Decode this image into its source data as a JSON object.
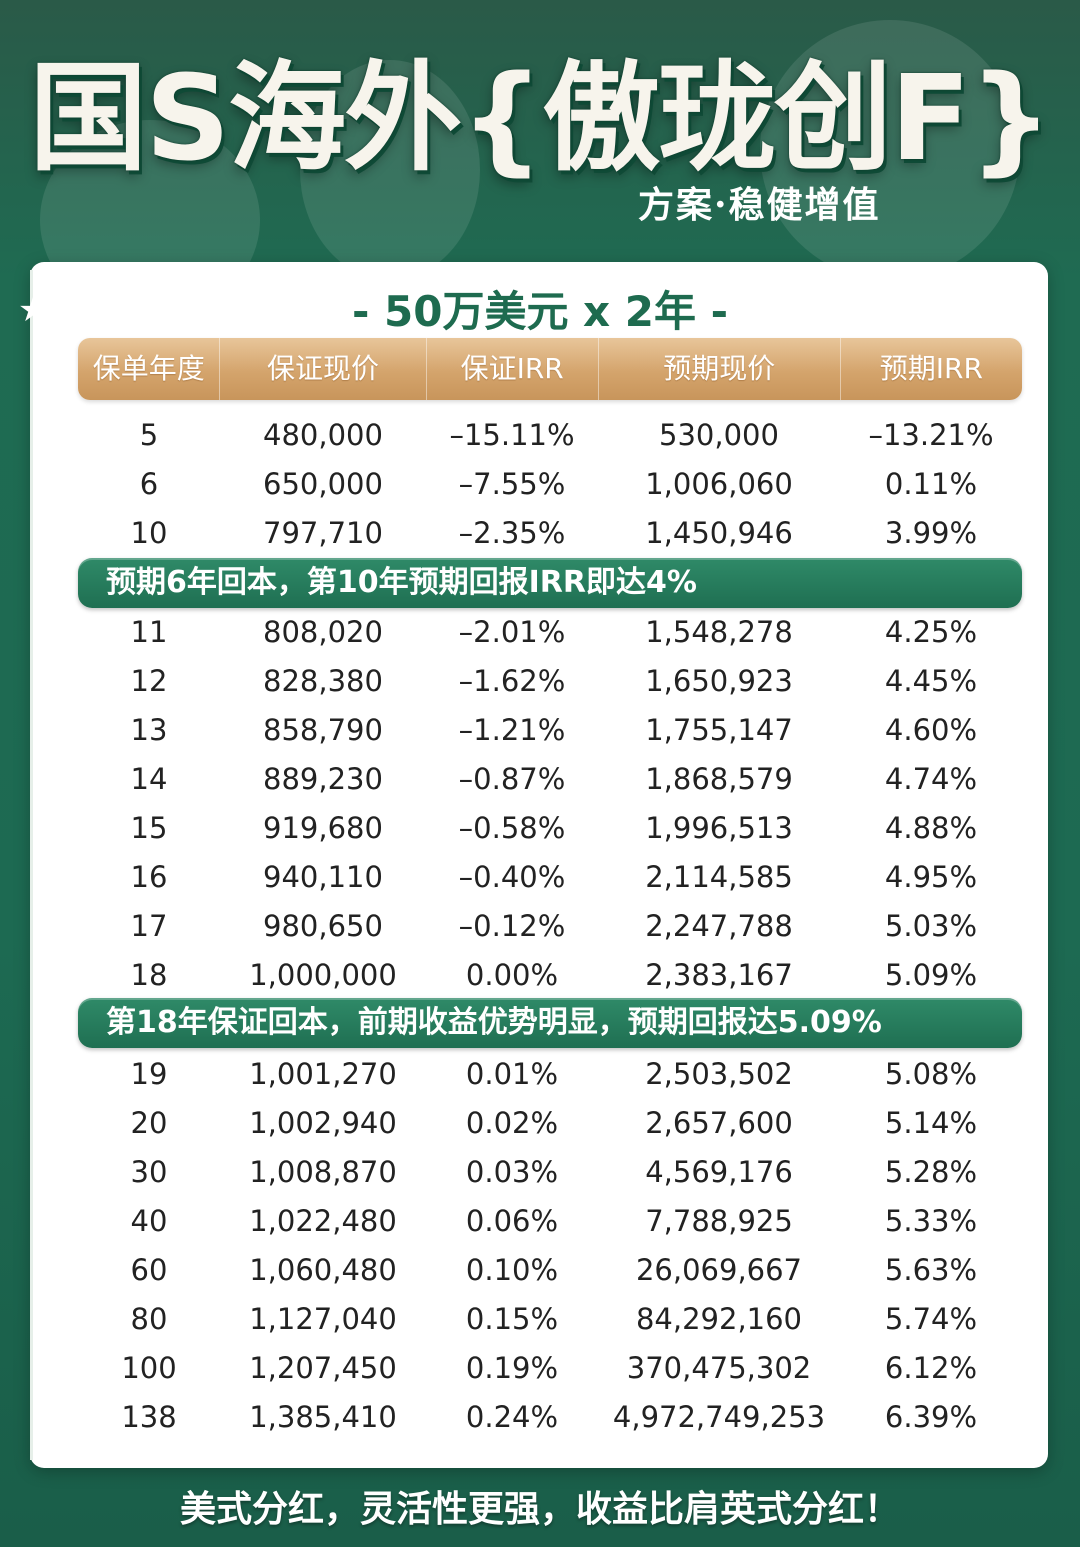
{
  "header": {
    "title": "国S海外{傲珑创F}",
    "subtitle": "方案·稳健增值"
  },
  "plan": {
    "title": "- 50万美元 x 2年 -"
  },
  "table": {
    "columns": [
      "保单年度",
      "保证现价",
      "保证IRR",
      "预期现价",
      "预期IRR"
    ],
    "group1": [
      [
        "5",
        "480,000",
        "–15.11%",
        "530,000",
        "–13.21%"
      ],
      [
        "6",
        "650,000",
        "–7.55%",
        "1,006,060",
        "0.11%"
      ],
      [
        "10",
        "797,710",
        "–2.35%",
        "1,450,946",
        "3.99%"
      ]
    ],
    "banner1": "预期6年回本，第10年预期回报IRR即达4%",
    "group2": [
      [
        "11",
        "808,020",
        "–2.01%",
        "1,548,278",
        "4.25%"
      ],
      [
        "12",
        "828,380",
        "–1.62%",
        "1,650,923",
        "4.45%"
      ],
      [
        "13",
        "858,790",
        "–1.21%",
        "1,755,147",
        "4.60%"
      ],
      [
        "14",
        "889,230",
        "–0.87%",
        "1,868,579",
        "4.74%"
      ],
      [
        "15",
        "919,680",
        "–0.58%",
        "1,996,513",
        "4.88%"
      ],
      [
        "16",
        "940,110",
        "–0.40%",
        "2,114,585",
        "4.95%"
      ],
      [
        "17",
        "980,650",
        "–0.12%",
        "2,247,788",
        "5.03%"
      ],
      [
        "18",
        "1,000,000",
        "0.00%",
        "2,383,167",
        "5.09%"
      ]
    ],
    "banner2": "第18年保证回本，前期收益优势明显，预期回报达5.09%",
    "group3": [
      [
        "19",
        "1,001,270",
        "0.01%",
        "2,503,502",
        "5.08%"
      ],
      [
        "20",
        "1,002,940",
        "0.02%",
        "2,657,600",
        "5.14%"
      ],
      [
        "30",
        "1,008,870",
        "0.03%",
        "4,569,176",
        "5.28%"
      ],
      [
        "40",
        "1,022,480",
        "0.06%",
        "7,788,925",
        "5.33%"
      ],
      [
        "60",
        "1,060,480",
        "0.10%",
        "26,069,667",
        "5.63%"
      ],
      [
        "80",
        "1,127,040",
        "0.15%",
        "84,292,160",
        "5.74%"
      ],
      [
        "100",
        "1,207,450",
        "0.19%",
        "370,475,302",
        "6.12%"
      ],
      [
        "138",
        "1,385,410",
        "0.24%",
        "4,972,749,253",
        "6.39%"
      ]
    ]
  },
  "footer": {
    "text": "美式分红，灵活性更强，收益比肩英式分红！"
  }
}
